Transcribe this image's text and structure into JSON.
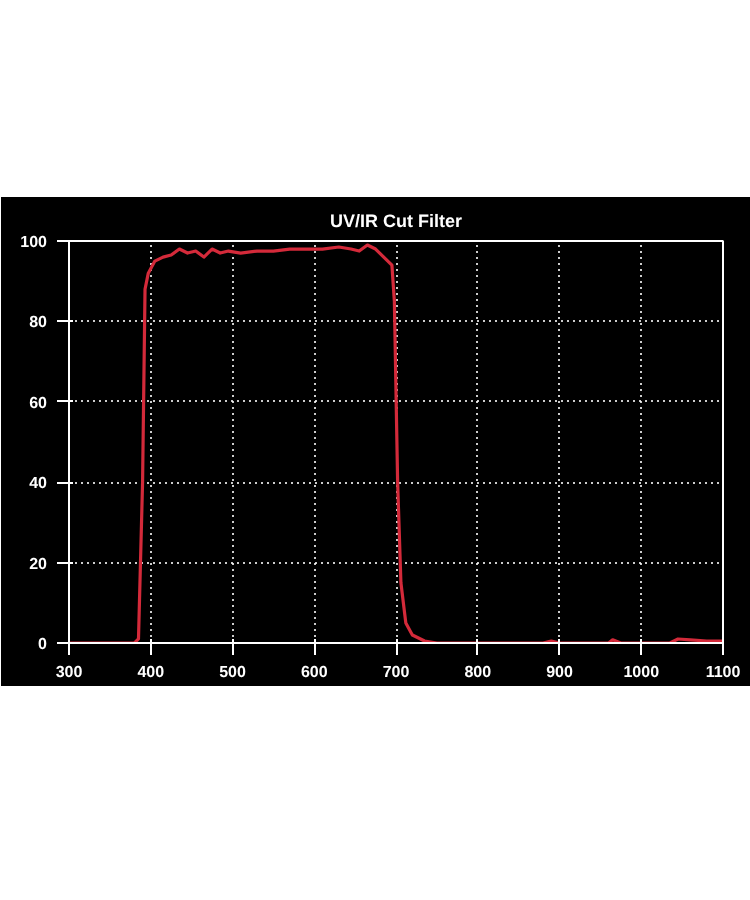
{
  "chart_data": {
    "type": "line",
    "title": "UV/IR Cut Filter",
    "x": [
      300,
      380,
      385,
      390,
      393,
      397,
      405,
      415,
      425,
      435,
      445,
      455,
      465,
      475,
      485,
      495,
      510,
      530,
      550,
      570,
      590,
      610,
      630,
      645,
      655,
      665,
      675,
      685,
      695,
      698,
      702,
      706,
      712,
      720,
      735,
      750,
      880,
      890,
      900,
      960,
      965,
      975,
      1035,
      1045,
      1060,
      1080,
      1100
    ],
    "series": [
      {
        "color": "#d42a3a",
        "values": [
          0,
          0,
          1,
          40,
          88,
          92,
          95,
          96,
          96.5,
          98,
          97,
          97.5,
          96,
          98,
          97,
          97.5,
          97,
          97.5,
          97.5,
          98,
          98,
          98,
          98.5,
          98,
          97.5,
          99,
          98,
          96,
          94,
          85,
          40,
          15,
          5,
          2,
          0.5,
          0,
          0,
          0.5,
          0,
          0,
          0.8,
          0,
          0,
          1,
          0.8,
          0.5,
          0.5
        ]
      }
    ],
    "xlim": [
      300,
      1100
    ],
    "ylim": [
      0,
      100
    ],
    "xticks": [
      300,
      400,
      500,
      600,
      700,
      800,
      900,
      1000,
      1100
    ],
    "yticks": [
      0,
      20,
      40,
      60,
      80,
      100
    ],
    "grid": true,
    "marker": "none",
    "line_style": "solid"
  }
}
